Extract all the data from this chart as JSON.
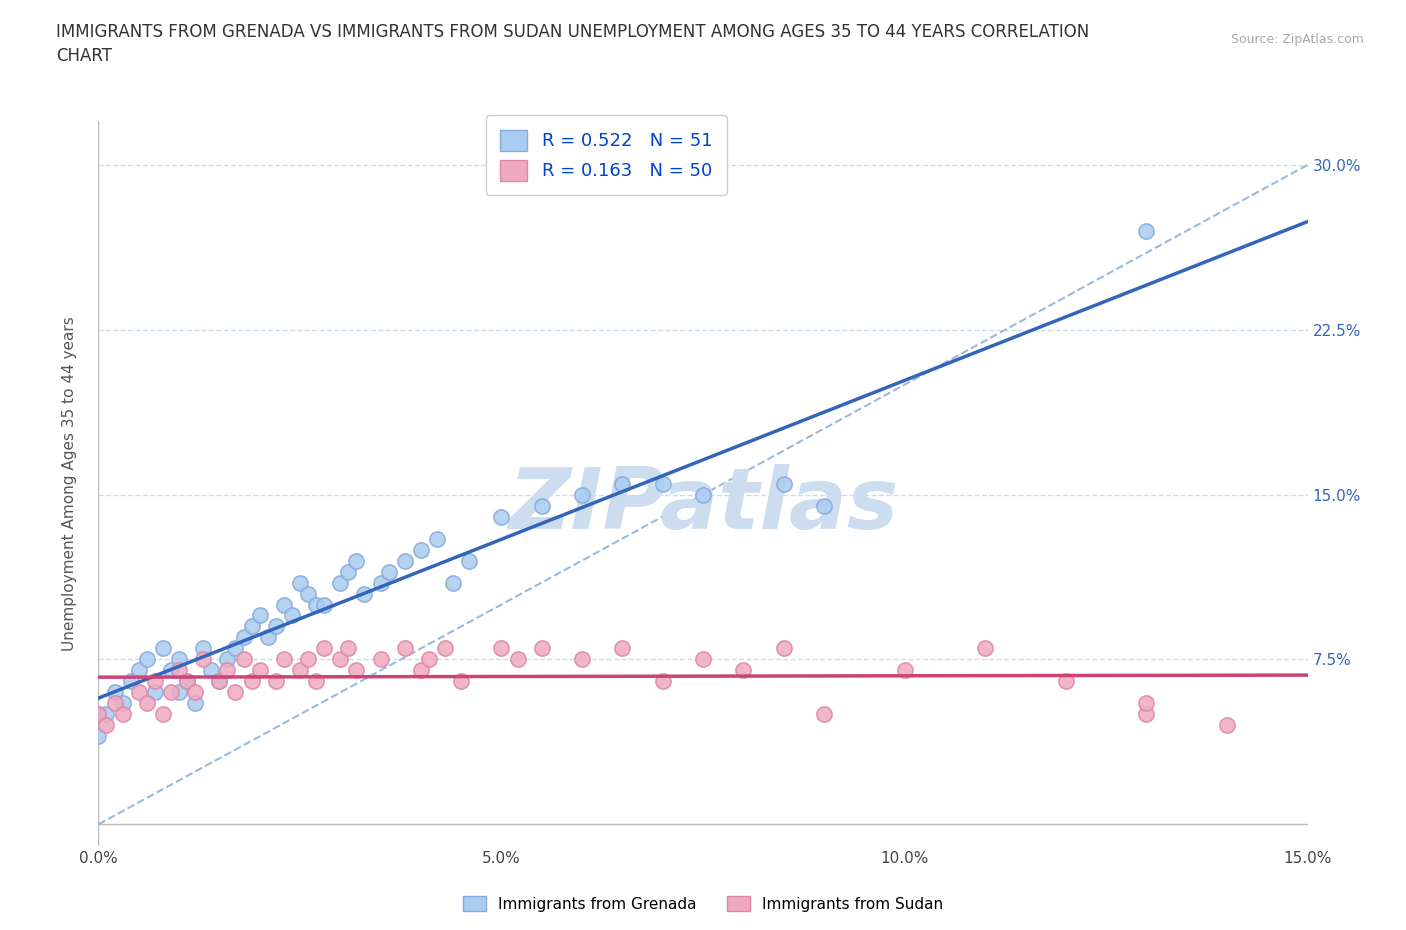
{
  "title": "IMMIGRANTS FROM GRENADA VS IMMIGRANTS FROM SUDAN UNEMPLOYMENT AMONG AGES 35 TO 44 YEARS CORRELATION\nCHART",
  "source": "Source: ZipAtlas.com",
  "ylabel": "Unemployment Among Ages 35 to 44 years",
  "xlim": [
    0.0,
    0.15
  ],
  "ylim": [
    -0.01,
    0.32
  ],
  "xticks": [
    0.0,
    0.05,
    0.1,
    0.15
  ],
  "xticklabels": [
    "0.0%",
    "5.0%",
    "10.0%",
    "15.0%"
  ],
  "yticks": [
    0.0,
    0.075,
    0.15,
    0.225,
    0.3
  ],
  "yticklabels": [
    "",
    "7.5%",
    "15.0%",
    "22.5%",
    "30.0%"
  ],
  "grenada_color": "#aaccf0",
  "grenada_edge_color": "#88aadd",
  "sudan_color": "#f0aac0",
  "sudan_edge_color": "#dd88aa",
  "grenada_R": 0.522,
  "grenada_N": 51,
  "sudan_R": 0.163,
  "sudan_N": 50,
  "grenada_line_color": "#3366bb",
  "sudan_line_color": "#cc4477",
  "diag_line_color": "#99bbdd",
  "legend_R_color": "#0044cc",
  "watermark_text": "ZIPatlas",
  "watermark_color": "#ccddf0",
  "background_color": "#ffffff",
  "grid_color": "#ccddee",
  "title_fontsize": 12,
  "axis_label_fontsize": 11,
  "tick_fontsize": 11,
  "legend_fontsize": 13,
  "grenada_x": [
    0.0,
    0.0,
    0.001,
    0.002,
    0.003,
    0.004,
    0.005,
    0.006,
    0.007,
    0.008,
    0.009,
    0.01,
    0.01,
    0.011,
    0.012,
    0.013,
    0.014,
    0.015,
    0.016,
    0.017,
    0.018,
    0.019,
    0.02,
    0.021,
    0.022,
    0.023,
    0.024,
    0.025,
    0.026,
    0.027,
    0.028,
    0.03,
    0.031,
    0.032,
    0.033,
    0.035,
    0.036,
    0.038,
    0.04,
    0.042,
    0.044,
    0.046,
    0.05,
    0.055,
    0.06,
    0.065,
    0.07,
    0.075,
    0.085,
    0.09,
    0.13
  ],
  "grenada_y": [
    0.04,
    0.05,
    0.05,
    0.06,
    0.055,
    0.065,
    0.07,
    0.075,
    0.06,
    0.08,
    0.07,
    0.075,
    0.06,
    0.065,
    0.055,
    0.08,
    0.07,
    0.065,
    0.075,
    0.08,
    0.085,
    0.09,
    0.095,
    0.085,
    0.09,
    0.1,
    0.095,
    0.11,
    0.105,
    0.1,
    0.1,
    0.11,
    0.115,
    0.12,
    0.105,
    0.11,
    0.115,
    0.12,
    0.125,
    0.13,
    0.11,
    0.12,
    0.14,
    0.145,
    0.15,
    0.155,
    0.155,
    0.15,
    0.155,
    0.145,
    0.27
  ],
  "sudan_x": [
    0.0,
    0.001,
    0.002,
    0.003,
    0.005,
    0.006,
    0.007,
    0.008,
    0.009,
    0.01,
    0.011,
    0.012,
    0.013,
    0.015,
    0.016,
    0.017,
    0.018,
    0.019,
    0.02,
    0.022,
    0.023,
    0.025,
    0.026,
    0.027,
    0.028,
    0.03,
    0.031,
    0.032,
    0.035,
    0.038,
    0.04,
    0.041,
    0.043,
    0.045,
    0.05,
    0.052,
    0.055,
    0.06,
    0.065,
    0.07,
    0.075,
    0.08,
    0.085,
    0.09,
    0.1,
    0.11,
    0.12,
    0.13,
    0.13,
    0.14
  ],
  "sudan_y": [
    0.05,
    0.045,
    0.055,
    0.05,
    0.06,
    0.055,
    0.065,
    0.05,
    0.06,
    0.07,
    0.065,
    0.06,
    0.075,
    0.065,
    0.07,
    0.06,
    0.075,
    0.065,
    0.07,
    0.065,
    0.075,
    0.07,
    0.075,
    0.065,
    0.08,
    0.075,
    0.08,
    0.07,
    0.075,
    0.08,
    0.07,
    0.075,
    0.08,
    0.065,
    0.08,
    0.075,
    0.08,
    0.075,
    0.08,
    0.065,
    0.075,
    0.07,
    0.08,
    0.05,
    0.07,
    0.08,
    0.065,
    0.05,
    0.055,
    0.045
  ]
}
